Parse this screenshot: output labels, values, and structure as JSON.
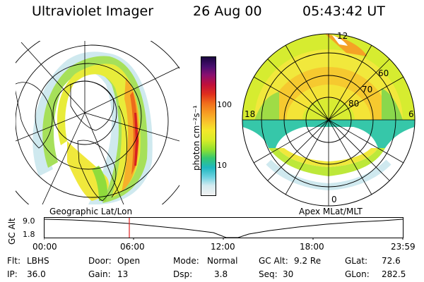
{
  "header": {
    "title": "Ultraviolet Imager",
    "date": "26 Aug 00",
    "time": "05:43:42 UT"
  },
  "left_panel": {
    "caption": "Geographic Lat/Lon"
  },
  "right_panel": {
    "caption": "Apex MLat/MLT",
    "mlat_labels": [
      "60",
      "70",
      "80"
    ],
    "mlt_labels": {
      "top": "12",
      "bottom": "0",
      "left": "18",
      "right": "6"
    }
  },
  "colorbar": {
    "unit_label": "photon cm⁻²s⁻¹",
    "scale": "log",
    "tick_labels": [
      "100",
      "10"
    ],
    "colors": [
      "#f2f2f2",
      "#d4ebf0",
      "#6fd2e0",
      "#1fb8c0",
      "#36c86f",
      "#8fe030",
      "#d8ec28",
      "#f4e82a",
      "#f9c32c",
      "#f79a22",
      "#ef6a1c",
      "#e0301c",
      "#c0103a",
      "#8a0f70",
      "#4a0f70",
      "#1a0640"
    ]
  },
  "timeline": {
    "axis_label": "GC Alt",
    "y_tick_labels": [
      "9.0",
      "1.8"
    ],
    "x_tick_labels": [
      "00:00",
      "06:00",
      "12:00",
      "18:00",
      "23:59"
    ],
    "marker_time": "05:43:42",
    "colors": {
      "marker": "#e02020"
    }
  },
  "info": {
    "filter_label": "Flt:",
    "filter_value": "LBHS",
    "ip_label": "IP:",
    "ip_value": "36.0",
    "door_label": "Door:",
    "door_value": "Open",
    "gain_label": "Gain:",
    "gain_value": "13",
    "mode_label": "Mode:",
    "mode_value": "Normal",
    "dsp_label": "Dsp:",
    "dsp_value": "3.8",
    "gcalt_label": "GC Alt:",
    "gcalt_value": "9.2 Re",
    "seq_label": "Seq:",
    "seq_value": "30",
    "glat_label": "GLat:",
    "glat_value": "72.6",
    "glon_label": "GLon:",
    "glon_value": "282.5"
  }
}
